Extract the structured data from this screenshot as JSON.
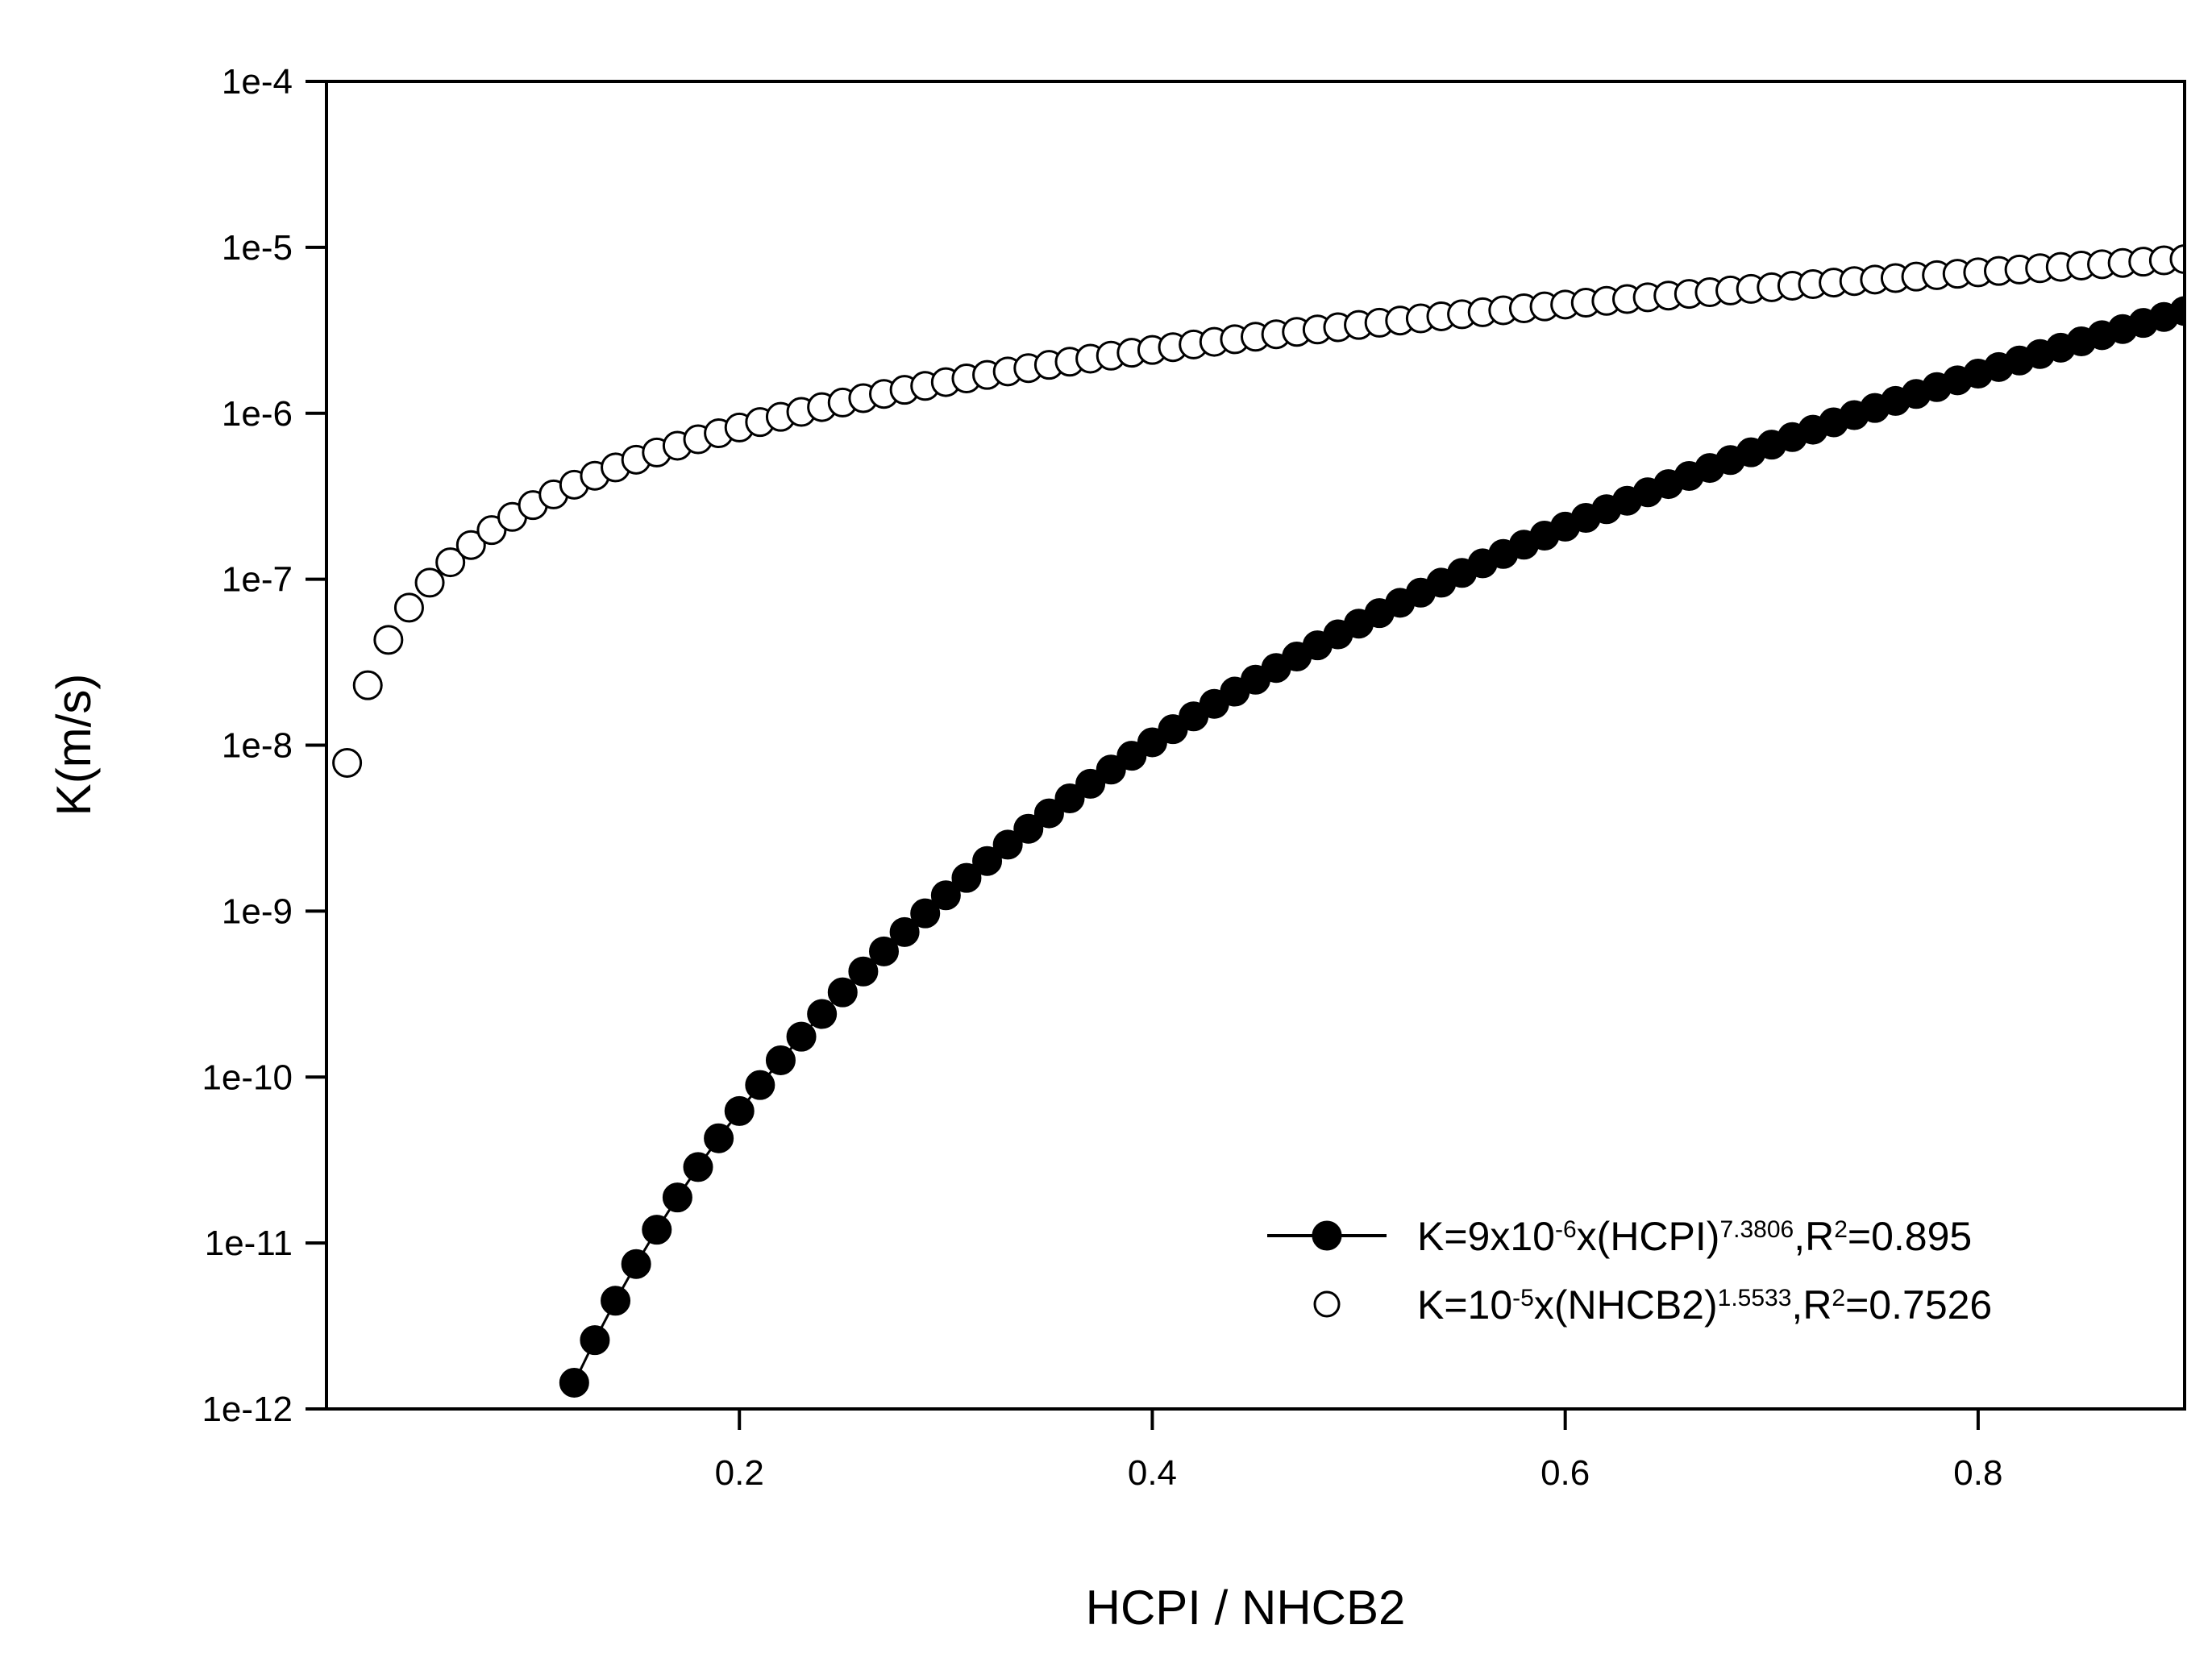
{
  "chart_data": {
    "type": "scatter",
    "xlabel": "HCPI / NHCB2",
    "ylabel": "K(m/s)",
    "xlim": [
      0,
      0.9
    ],
    "ylim": [
      1e-12,
      0.0001
    ],
    "y_scale": "log",
    "grid": false,
    "legend_position": "bottom-right",
    "x_ticks": [
      0.2,
      0.4,
      0.6,
      0.8
    ],
    "x_tick_labels": [
      "0.2",
      "0.4",
      "0.6",
      "0.8"
    ],
    "y_ticks": [
      1e-12,
      1e-11,
      1e-10,
      1e-09,
      1e-08,
      1e-07,
      1e-06,
      1e-05,
      0.0001
    ],
    "y_tick_labels": [
      "1e-12",
      "1e-11",
      "1e-10",
      "1e-9",
      "1e-8",
      "1e-7",
      "1e-6",
      "1e-5",
      "1e-4"
    ],
    "series": [
      {
        "legend": {
          "parts": [
            {
              "text": "K=9x10",
              "sup": false
            },
            {
              "text": "-6",
              "sup": true
            },
            {
              "text": "x(HCPI)",
              "sup": false
            },
            {
              "text": "7.3806",
              "sup": true
            },
            {
              "text": ",R",
              "sup": false
            },
            {
              "text": "2",
              "sup": true
            },
            {
              "text": "=0.895",
              "sup": false
            }
          ]
        },
        "marker": "filled-circle",
        "line": true,
        "color": "#000000",
        "coefficient": 9e-06,
        "exponent": 7.3806,
        "x": [
          0.12,
          0.13,
          0.14,
          0.15,
          0.16,
          0.17,
          0.18,
          0.19,
          0.2,
          0.21,
          0.22,
          0.23,
          0.24,
          0.25,
          0.26,
          0.27,
          0.28,
          0.29,
          0.3,
          0.31,
          0.32,
          0.33,
          0.34,
          0.35,
          0.36,
          0.37,
          0.38,
          0.39,
          0.4,
          0.41,
          0.42,
          0.43,
          0.44,
          0.45,
          0.46,
          0.47,
          0.48,
          0.49,
          0.5,
          0.51,
          0.52,
          0.53,
          0.54,
          0.55,
          0.56,
          0.57,
          0.58,
          0.59,
          0.6,
          0.61,
          0.62,
          0.63,
          0.64,
          0.65,
          0.66,
          0.67,
          0.68,
          0.69,
          0.7,
          0.71,
          0.72,
          0.73,
          0.74,
          0.75,
          0.76,
          0.77,
          0.78,
          0.79,
          0.8,
          0.81,
          0.82,
          0.83,
          0.84,
          0.85,
          0.86,
          0.87,
          0.88,
          0.89,
          0.9
        ]
      },
      {
        "legend": {
          "parts": [
            {
              "text": "K=10",
              "sup": false
            },
            {
              "text": "-5",
              "sup": true
            },
            {
              "text": "x(NHCB2)",
              "sup": false
            },
            {
              "text": "1.5533",
              "sup": true
            },
            {
              "text": ",R",
              "sup": false
            },
            {
              "text": "2",
              "sup": true
            },
            {
              "text": "=0.7526",
              "sup": false
            }
          ]
        },
        "marker": "open-circle",
        "line": false,
        "color": "#000000",
        "coefficient": 1e-05,
        "exponent": 1.5533,
        "x": [
          0.01,
          0.02,
          0.03,
          0.04,
          0.05,
          0.06,
          0.07,
          0.08,
          0.09,
          0.1,
          0.11,
          0.12,
          0.13,
          0.14,
          0.15,
          0.16,
          0.17,
          0.18,
          0.19,
          0.2,
          0.21,
          0.22,
          0.23,
          0.24,
          0.25,
          0.26,
          0.27,
          0.28,
          0.29,
          0.3,
          0.31,
          0.32,
          0.33,
          0.34,
          0.35,
          0.36,
          0.37,
          0.38,
          0.39,
          0.4,
          0.41,
          0.42,
          0.43,
          0.44,
          0.45,
          0.46,
          0.47,
          0.48,
          0.49,
          0.5,
          0.51,
          0.52,
          0.53,
          0.54,
          0.55,
          0.56,
          0.57,
          0.58,
          0.59,
          0.6,
          0.61,
          0.62,
          0.63,
          0.64,
          0.65,
          0.66,
          0.67,
          0.68,
          0.69,
          0.7,
          0.71,
          0.72,
          0.73,
          0.74,
          0.75,
          0.76,
          0.77,
          0.78,
          0.79,
          0.8,
          0.81,
          0.82,
          0.83,
          0.84,
          0.85,
          0.86,
          0.87,
          0.88,
          0.89,
          0.9
        ]
      }
    ]
  }
}
